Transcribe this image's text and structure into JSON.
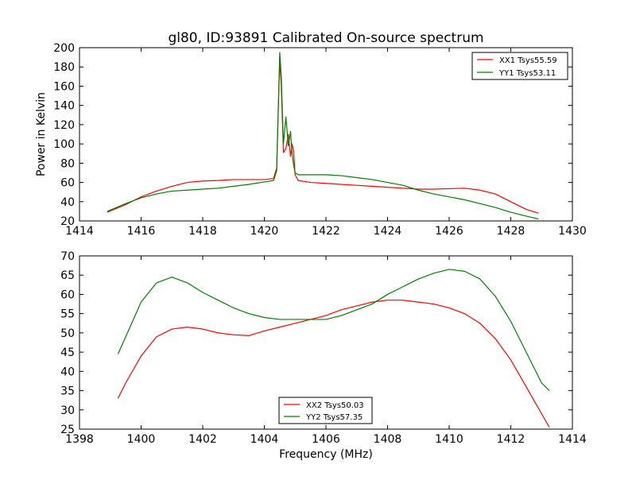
{
  "figure": {
    "title": "gl80, ID:93891 Calibrated On-source spectrum"
  },
  "chart_data": [
    {
      "type": "line",
      "title": "gl80, ID:93891 Calibrated On-source spectrum",
      "xlabel": "",
      "ylabel": "Power in Kelvin",
      "xlim": [
        1414,
        1430
      ],
      "ylim": [
        20,
        200
      ],
      "xticks": [
        "1414",
        "1416",
        "1418",
        "1420",
        "1422",
        "1424",
        "1426",
        "1428",
        "1430"
      ],
      "yticks": [
        "20",
        "40",
        "60",
        "80",
        "100",
        "120",
        "140",
        "160",
        "180",
        "200"
      ],
      "grid": false,
      "legend_position": "top-right",
      "series": [
        {
          "name": "XX1 Tsys55.59",
          "color": "#ff0000",
          "x": [
            1414.9,
            1415.5,
            1416.0,
            1416.5,
            1417.0,
            1417.5,
            1418.0,
            1418.5,
            1419.0,
            1419.5,
            1420.0,
            1420.3,
            1420.4,
            1420.5,
            1420.55,
            1420.62,
            1420.7,
            1420.78,
            1420.85,
            1420.9,
            1420.95,
            1421.0,
            1421.1,
            1421.5,
            1422.0,
            1422.5,
            1423.0,
            1423.5,
            1424.0,
            1424.5,
            1425.0,
            1425.5,
            1426.0,
            1426.5,
            1427.0,
            1427.5,
            1428.0,
            1428.5,
            1428.9
          ],
          "y": [
            29,
            37,
            45,
            51,
            56,
            60,
            61.5,
            62,
            63,
            63,
            63,
            64,
            75,
            188,
            160,
            91,
            95,
            110,
            87,
            100,
            93,
            68,
            62,
            60,
            59,
            58,
            57,
            56,
            55,
            54,
            53,
            53,
            53.5,
            54,
            52,
            48,
            40,
            32,
            28
          ]
        },
        {
          "name": "YY1 Tsys53.11",
          "color": "#008000",
          "x": [
            1414.9,
            1415.5,
            1416.0,
            1416.5,
            1417.0,
            1417.5,
            1418.0,
            1418.5,
            1419.0,
            1419.5,
            1420.0,
            1420.3,
            1420.4,
            1420.5,
            1420.55,
            1420.62,
            1420.7,
            1420.78,
            1420.85,
            1420.9,
            1420.95,
            1421.0,
            1421.1,
            1421.5,
            1422.0,
            1422.5,
            1423.0,
            1423.5,
            1424.0,
            1424.5,
            1425.0,
            1425.5,
            1426.0,
            1426.5,
            1427.0,
            1427.5,
            1428.0,
            1428.5,
            1428.9
          ],
          "y": [
            30,
            38,
            44,
            48,
            51,
            52,
            53,
            54,
            56,
            58,
            60.5,
            62,
            72,
            195,
            170,
            100,
            128,
            98,
            113,
            90,
            78,
            70,
            68,
            68,
            68,
            67,
            65,
            63,
            60,
            57,
            52,
            48,
            45,
            42,
            38,
            34,
            29,
            25,
            22
          ]
        }
      ]
    },
    {
      "type": "line",
      "title": "",
      "xlabel": "Frequency (MHz)",
      "ylabel": "",
      "xlim": [
        1398,
        1414
      ],
      "ylim": [
        25,
        70
      ],
      "xticks": [
        "1398",
        "1400",
        "1402",
        "1404",
        "1406",
        "1408",
        "1410",
        "1412",
        "1414"
      ],
      "yticks": [
        "25",
        "30",
        "35",
        "40",
        "45",
        "50",
        "55",
        "60",
        "65",
        "70"
      ],
      "grid": false,
      "legend_position": "bottom-center",
      "series": [
        {
          "name": "XX2 Tsys50.03",
          "color": "#ff0000",
          "x": [
            1399.25,
            1399.5,
            1400.0,
            1400.5,
            1401.0,
            1401.5,
            1402.0,
            1402.5,
            1403.0,
            1403.5,
            1404.0,
            1404.5,
            1405.0,
            1405.5,
            1406.0,
            1406.5,
            1407.0,
            1407.5,
            1408.0,
            1408.5,
            1409.0,
            1409.5,
            1410.0,
            1410.5,
            1411.0,
            1411.5,
            1412.0,
            1412.5,
            1413.0,
            1413.25
          ],
          "y": [
            33,
            37,
            44,
            49,
            51,
            51.5,
            51,
            50,
            49.5,
            49.3,
            50.5,
            51.5,
            52.5,
            53.5,
            54.5,
            56,
            57,
            58,
            58.5,
            58.5,
            58,
            57.5,
            56.5,
            55,
            52.5,
            48.5,
            43,
            36,
            29,
            25.5
          ]
        },
        {
          "name": "YY2 Tsys57.35",
          "color": "#008000",
          "x": [
            1399.25,
            1399.5,
            1400.0,
            1400.5,
            1401.0,
            1401.5,
            1402.0,
            1402.5,
            1403.0,
            1403.5,
            1404.0,
            1404.5,
            1405.0,
            1405.5,
            1406.0,
            1406.5,
            1407.0,
            1407.5,
            1408.0,
            1408.5,
            1409.0,
            1409.5,
            1410.0,
            1410.5,
            1411.0,
            1411.5,
            1412.0,
            1412.5,
            1413.0,
            1413.25
          ],
          "y": [
            44.5,
            49,
            58,
            63,
            64.5,
            63,
            60.5,
            58.5,
            56.5,
            55,
            54,
            53.5,
            53.5,
            53.5,
            53.5,
            54.5,
            56,
            57.5,
            60,
            62,
            64,
            65.5,
            66.5,
            66,
            64,
            59.5,
            53,
            45,
            37,
            35
          ]
        }
      ]
    }
  ]
}
